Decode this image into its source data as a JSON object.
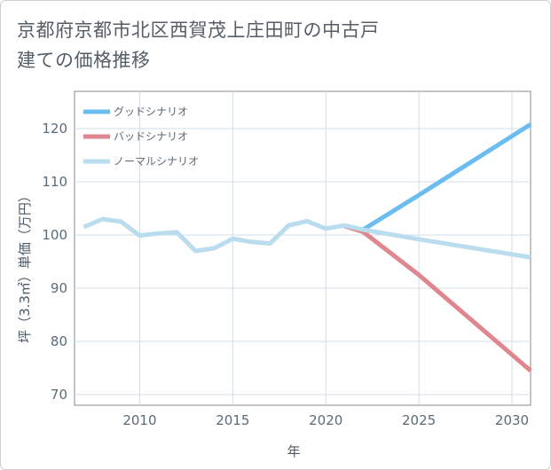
{
  "chart_data": {
    "type": "line",
    "title": "京都府京都市北区西賀茂上庄田町の中古戸建ての価格推移",
    "xlabel": "年",
    "ylabel": "坪（3.3㎡）単価（万円）",
    "xlim": [
      2006.5,
      2031
    ],
    "ylim": [
      68,
      127
    ],
    "x_ticks": [
      2010,
      2015,
      2020,
      2025,
      2030
    ],
    "y_ticks": [
      70,
      80,
      90,
      100,
      110,
      120
    ],
    "grid": true,
    "legend_position": "top-left",
    "series": [
      {
        "name": "グッドシナリオ",
        "color": "#6bbdf0",
        "x": [
          2021,
          2022,
          2025,
          2031
        ],
        "y": [
          101.7,
          101.0,
          107.5,
          120.8
        ]
      },
      {
        "name": "バッドシナリオ",
        "color": "#e0868f",
        "x": [
          2021,
          2022,
          2025,
          2031
        ],
        "y": [
          101.7,
          100.6,
          92.5,
          74.5
        ]
      },
      {
        "name": "ノーマルシナリオ",
        "color": "#b9dcef",
        "x": [
          2007,
          2008,
          2009,
          2010,
          2011,
          2012,
          2013,
          2014,
          2015,
          2016,
          2017,
          2018,
          2019,
          2020,
          2021,
          2022,
          2025,
          2031
        ],
        "y": [
          101.5,
          103.0,
          102.5,
          99.9,
          100.3,
          100.5,
          97.0,
          97.5,
          99.3,
          98.7,
          98.4,
          101.8,
          102.6,
          101.2,
          101.8,
          101.0,
          99.2,
          95.8
        ]
      }
    ]
  }
}
